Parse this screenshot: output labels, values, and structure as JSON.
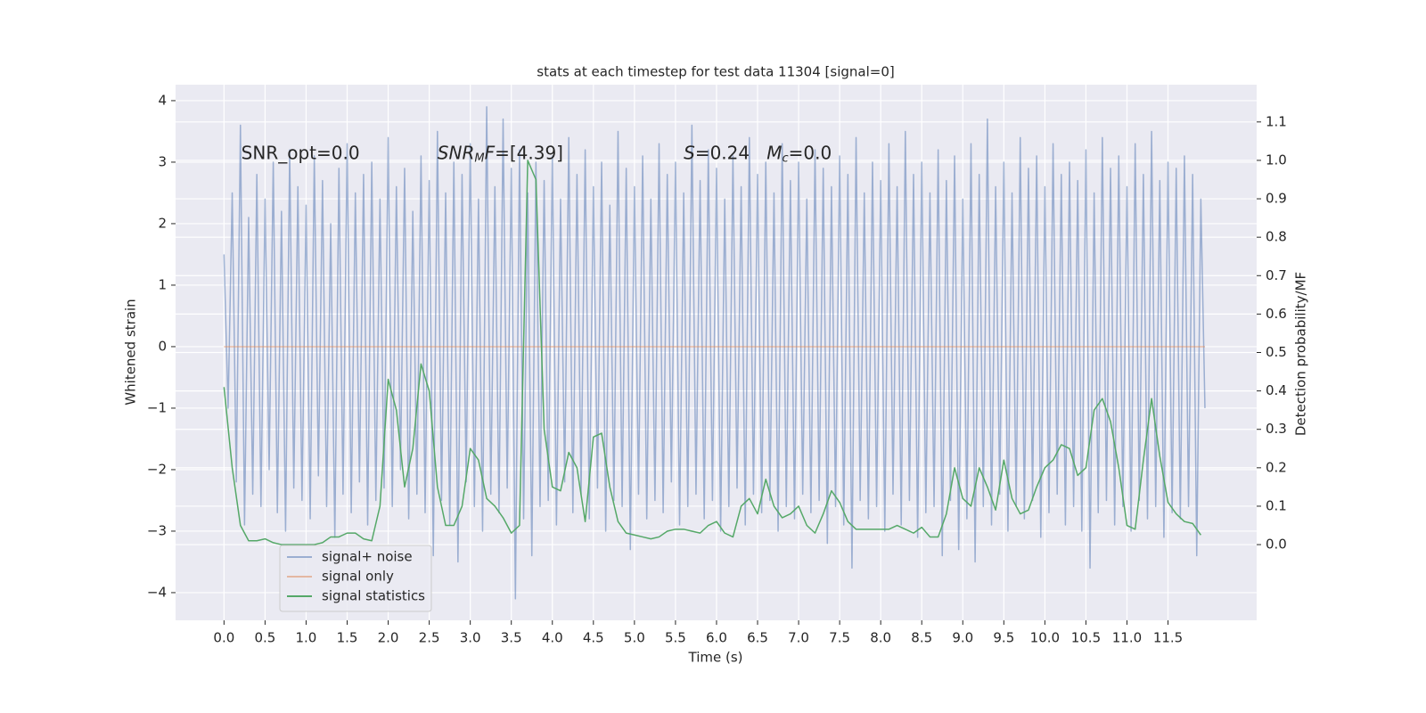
{
  "chart_data": {
    "type": "line",
    "title": "stats at each timestep for test data 11304 [signal=0]",
    "x_label": "Time (s)",
    "y_label": "Whitened strain",
    "y2_label": "Detection probability/MF",
    "xlim": [
      -0.59,
      12.58
    ],
    "ylim": [
      -4.45,
      4.26
    ],
    "y2lim": [
      -0.197,
      1.197
    ],
    "xticks": [
      {
        "value": 0,
        "label": "0.0"
      },
      0.5,
      {
        "value": 1,
        "label": "1.0"
      },
      1.5,
      {
        "value": 2,
        "label": "2.0"
      },
      2.5,
      {
        "value": 3,
        "label": "3.0"
      },
      3.5,
      {
        "value": 4,
        "label": "4.0"
      },
      4.5,
      {
        "value": 5,
        "label": "5.0"
      },
      5.5,
      {
        "value": 6,
        "label": "6.0"
      },
      6.5,
      {
        "value": 7,
        "label": "7.0"
      },
      7.5,
      {
        "value": 8,
        "label": "8.0"
      },
      8.5,
      {
        "value": 9,
        "label": "9.0"
      },
      9.5,
      {
        "value": 10,
        "label": "10.0"
      },
      10.5,
      {
        "value": 11,
        "label": "11.0"
      },
      11.5
    ],
    "yticks": [
      {
        "value": -4,
        "label": "−4"
      },
      {
        "value": -3,
        "label": "−3"
      },
      {
        "value": -2,
        "label": "−2"
      },
      {
        "value": -1,
        "label": "−1"
      },
      0,
      1,
      2,
      3,
      4
    ],
    "y2ticks": [
      {
        "value": 0,
        "label": "0.0"
      },
      0.1,
      0.2,
      0.3,
      0.4,
      0.5,
      0.6,
      0.7,
      0.8,
      0.9,
      {
        "value": 1,
        "label": "1.0"
      },
      1.1
    ],
    "grid": true,
    "legend": "lower left",
    "annotations": [
      {
        "x": 0.21,
        "y": 3.14,
        "segments": [
          {
            "text": "SNR_opt=0.0",
            "style": "normal"
          }
        ]
      },
      {
        "x": 2.6,
        "y": 3.14,
        "segments": [
          {
            "text": "SNR",
            "style": "italic"
          },
          {
            "text": "M",
            "style": "italic-sub"
          },
          {
            "text": "F",
            "style": "italic"
          },
          {
            "text": "=[4.39]",
            "style": "normal"
          }
        ]
      },
      {
        "x": 5.6,
        "y": 3.14,
        "segments": [
          {
            "text": "S",
            "style": "italic"
          },
          {
            "text": "=0.24   ",
            "style": "normal"
          },
          {
            "text": "M",
            "style": "italic"
          },
          {
            "text": "c",
            "style": "italic-sub"
          },
          {
            "text": "=0.0",
            "style": "normal"
          }
        ]
      }
    ],
    "series": [
      {
        "name": "signal+ noise",
        "color": "#4c72b0",
        "opacity": 0.5,
        "x": [
          0.0,
          0.05,
          0.1,
          0.15,
          0.2,
          0.25,
          0.3,
          0.35,
          0.4,
          0.45,
          0.5,
          0.55,
          0.6,
          0.65,
          0.7,
          0.75,
          0.8,
          0.85,
          0.9,
          0.95,
          1.0,
          1.05,
          1.1,
          1.15,
          1.2,
          1.25,
          1.3,
          1.35,
          1.4,
          1.45,
          1.5,
          1.55,
          1.6,
          1.65,
          1.7,
          1.75,
          1.8,
          1.85,
          1.9,
          1.95,
          2.0,
          2.05,
          2.1,
          2.15,
          2.2,
          2.25,
          2.3,
          2.35,
          2.4,
          2.45,
          2.5,
          2.55,
          2.6,
          2.65,
          2.7,
          2.75,
          2.8,
          2.85,
          2.9,
          2.95,
          3.0,
          3.05,
          3.1,
          3.15,
          3.2,
          3.25,
          3.3,
          3.35,
          3.4,
          3.45,
          3.5,
          3.55,
          3.6,
          3.65,
          3.7,
          3.75,
          3.8,
          3.85,
          3.9,
          3.95,
          4.0,
          4.05,
          4.1,
          4.15,
          4.2,
          4.25,
          4.3,
          4.35,
          4.4,
          4.45,
          4.5,
          4.55,
          4.6,
          4.65,
          4.7,
          4.75,
          4.8,
          4.85,
          4.9,
          4.95,
          5.0,
          5.05,
          5.1,
          5.15,
          5.2,
          5.25,
          5.3,
          5.35,
          5.4,
          5.45,
          5.5,
          5.55,
          5.6,
          5.65,
          5.7,
          5.75,
          5.8,
          5.85,
          5.9,
          5.95,
          6.0,
          6.05,
          6.1,
          6.15,
          6.2,
          6.25,
          6.3,
          6.35,
          6.4,
          6.45,
          6.5,
          6.55,
          6.6,
          6.65,
          6.7,
          6.75,
          6.8,
          6.85,
          6.9,
          6.95,
          7.0,
          7.05,
          7.1,
          7.15,
          7.2,
          7.25,
          7.3,
          7.35,
          7.4,
          7.45,
          7.5,
          7.55,
          7.6,
          7.65,
          7.7,
          7.75,
          7.8,
          7.85,
          7.9,
          7.95,
          8.0,
          8.05,
          8.1,
          8.15,
          8.2,
          8.25,
          8.3,
          8.35,
          8.4,
          8.45,
          8.5,
          8.55,
          8.6,
          8.65,
          8.7,
          8.75,
          8.8,
          8.85,
          8.9,
          8.95,
          9.0,
          9.05,
          9.1,
          9.15,
          9.2,
          9.25,
          9.3,
          9.35,
          9.4,
          9.45,
          9.5,
          9.55,
          9.6,
          9.65,
          9.7,
          9.75,
          9.8,
          9.85,
          9.9,
          9.95,
          10.0,
          10.05,
          10.1,
          10.15,
          10.2,
          10.25,
          10.3,
          10.35,
          10.4,
          10.45,
          10.5,
          10.55,
          10.6,
          10.65,
          10.7,
          10.75,
          10.8,
          10.85,
          10.9,
          10.95,
          11.0,
          11.05,
          11.1,
          11.15,
          11.2,
          11.25,
          11.3,
          11.35,
          11.4,
          11.45,
          11.5,
          11.55,
          11.6,
          11.65,
          11.7,
          11.75,
          11.8,
          11.85,
          11.9,
          11.95
        ],
        "values": [
          1.5,
          -1.0,
          2.5,
          -2.2,
          3.6,
          -2.9,
          2.1,
          -2.4,
          2.8,
          -2.6,
          2.4,
          -2.0,
          3.0,
          -2.7,
          2.2,
          -3.0,
          3.2,
          -2.3,
          2.6,
          -2.5,
          2.3,
          -2.8,
          3.1,
          -2.1,
          2.7,
          -2.6,
          2.0,
          -3.1,
          2.9,
          -2.4,
          3.3,
          -2.7,
          2.5,
          -2.2,
          2.8,
          -2.9,
          3.0,
          -2.5,
          2.4,
          -2.3,
          3.4,
          -2.6,
          2.6,
          -2.0,
          2.9,
          -2.8,
          2.2,
          -2.4,
          3.1,
          -2.7,
          2.7,
          -3.4,
          3.5,
          -2.5,
          2.5,
          -2.9,
          3.0,
          -3.5,
          2.8,
          -2.2,
          3.3,
          -2.6,
          2.4,
          -3.0,
          3.9,
          -2.4,
          2.6,
          -2.7,
          3.7,
          -2.3,
          2.9,
          -4.1,
          3.2,
          -2.8,
          2.5,
          -3.4,
          3.0,
          -2.6,
          2.7,
          -2.5,
          3.1,
          -2.9,
          2.4,
          -2.2,
          3.4,
          -2.7,
          2.8,
          -2.4,
          3.2,
          -2.8,
          2.6,
          -2.3,
          3.0,
          -3.0,
          2.3,
          -2.5,
          3.5,
          -2.6,
          2.9,
          -3.3,
          2.6,
          -2.4,
          3.1,
          -2.8,
          2.4,
          -2.5,
          3.3,
          -2.7,
          2.8,
          -2.2,
          3.0,
          -2.9,
          2.5,
          -2.6,
          3.6,
          -2.4,
          2.7,
          -2.8,
          3.2,
          -2.5,
          2.9,
          -3.0,
          2.4,
          -2.6,
          3.1,
          -2.3,
          2.6,
          -2.9,
          3.4,
          -2.4,
          2.8,
          -2.7,
          3.0,
          -2.5,
          2.5,
          -3.0,
          3.3,
          -2.6,
          2.7,
          -2.8,
          3.0,
          -2.4,
          2.4,
          -2.7,
          3.2,
          -2.5,
          2.9,
          -3.2,
          2.6,
          -2.6,
          3.1,
          -2.9,
          2.8,
          -3.6,
          3.4,
          -2.5,
          2.5,
          -2.8,
          3.0,
          -2.6,
          2.7,
          -3.0,
          3.3,
          -2.4,
          2.6,
          -2.9,
          3.5,
          -2.5,
          2.8,
          -3.1,
          3.0,
          -2.7,
          2.5,
          -2.6,
          3.2,
          -3.4,
          2.7,
          -2.5,
          3.1,
          -3.3,
          2.4,
          -2.8,
          3.3,
          -3.5,
          2.8,
          -2.6,
          3.7,
          -2.9,
          2.6,
          -2.4,
          3.0,
          -3.0,
          2.5,
          -2.6,
          3.4,
          -2.8,
          2.9,
          -2.5,
          3.1,
          -3.1,
          2.6,
          -2.7,
          3.3,
          -2.4,
          2.8,
          -2.9,
          3.0,
          -2.6,
          2.7,
          -3.0,
          3.2,
          -3.6,
          2.5,
          -2.7,
          3.4,
          -2.5,
          2.9,
          -2.9,
          3.1,
          -2.6,
          2.6,
          -3.0,
          3.3,
          -2.5,
          2.8,
          -2.8,
          3.5,
          -2.6,
          2.7,
          -3.1,
          3.0,
          -2.7,
          2.9,
          -2.8,
          3.1,
          -2.6,
          2.8,
          -3.4,
          2.4,
          -1.0
        ]
      },
      {
        "name": "signal only",
        "color": "#dd8452",
        "opacity": 0.5,
        "x": [
          0.0,
          11.95
        ],
        "values": [
          0.0,
          0.0
        ]
      },
      {
        "name": "signal statistics",
        "color": "#55a868",
        "opacity": 1,
        "axis": "y2",
        "x": [
          0.0,
          0.1,
          0.2,
          0.3,
          0.4,
          0.5,
          0.6,
          0.7,
          0.8,
          0.9,
          1.0,
          1.1,
          1.2,
          1.3,
          1.4,
          1.5,
          1.6,
          1.7,
          1.8,
          1.9,
          2.0,
          2.1,
          2.2,
          2.3,
          2.4,
          2.5,
          2.6,
          2.7,
          2.8,
          2.9,
          3.0,
          3.1,
          3.2,
          3.3,
          3.4,
          3.5,
          3.6,
          3.7,
          3.8,
          3.9,
          4.0,
          4.1,
          4.2,
          4.3,
          4.4,
          4.5,
          4.6,
          4.7,
          4.8,
          4.9,
          5.0,
          5.1,
          5.2,
          5.3,
          5.4,
          5.5,
          5.6,
          5.7,
          5.8,
          5.9,
          6.0,
          6.1,
          6.2,
          6.3,
          6.4,
          6.5,
          6.6,
          6.7,
          6.8,
          6.9,
          7.0,
          7.1,
          7.2,
          7.3,
          7.4,
          7.5,
          7.6,
          7.7,
          7.8,
          7.9,
          8.0,
          8.1,
          8.2,
          8.3,
          8.4,
          8.5,
          8.6,
          8.7,
          8.8,
          8.9,
          9.0,
          9.1,
          9.2,
          9.3,
          9.4,
          9.5,
          9.6,
          9.7,
          9.8,
          9.9,
          10.0,
          10.1,
          10.2,
          10.3,
          10.4,
          10.5,
          10.6,
          10.7,
          10.8,
          10.9,
          11.0,
          11.1,
          11.2,
          11.3,
          11.4,
          11.5,
          11.6,
          11.7,
          11.8,
          11.9
        ],
        "values": [
          0.41,
          0.2,
          0.05,
          0.01,
          0.01,
          0.015,
          0.005,
          0.0,
          0.0,
          0.0,
          0.0,
          0.0,
          0.005,
          0.02,
          0.02,
          0.03,
          0.03,
          0.015,
          0.01,
          0.1,
          0.43,
          0.35,
          0.15,
          0.25,
          0.47,
          0.4,
          0.15,
          0.05,
          0.05,
          0.1,
          0.25,
          0.22,
          0.12,
          0.1,
          0.07,
          0.03,
          0.05,
          1.0,
          0.95,
          0.3,
          0.15,
          0.14,
          0.24,
          0.2,
          0.06,
          0.28,
          0.29,
          0.15,
          0.06,
          0.03,
          0.025,
          0.02,
          0.015,
          0.02,
          0.035,
          0.04,
          0.04,
          0.035,
          0.03,
          0.05,
          0.06,
          0.03,
          0.02,
          0.1,
          0.12,
          0.08,
          0.17,
          0.1,
          0.07,
          0.08,
          0.1,
          0.05,
          0.03,
          0.08,
          0.14,
          0.11,
          0.06,
          0.04,
          0.04,
          0.04,
          0.04,
          0.04,
          0.05,
          0.04,
          0.03,
          0.045,
          0.02,
          0.02,
          0.08,
          0.2,
          0.12,
          0.1,
          0.2,
          0.15,
          0.09,
          0.22,
          0.12,
          0.08,
          0.09,
          0.15,
          0.2,
          0.22,
          0.26,
          0.25,
          0.18,
          0.2,
          0.35,
          0.38,
          0.32,
          0.2,
          0.05,
          0.04,
          0.22,
          0.38,
          0.23,
          0.11,
          0.08,
          0.06,
          0.055,
          0.025
        ]
      }
    ]
  }
}
